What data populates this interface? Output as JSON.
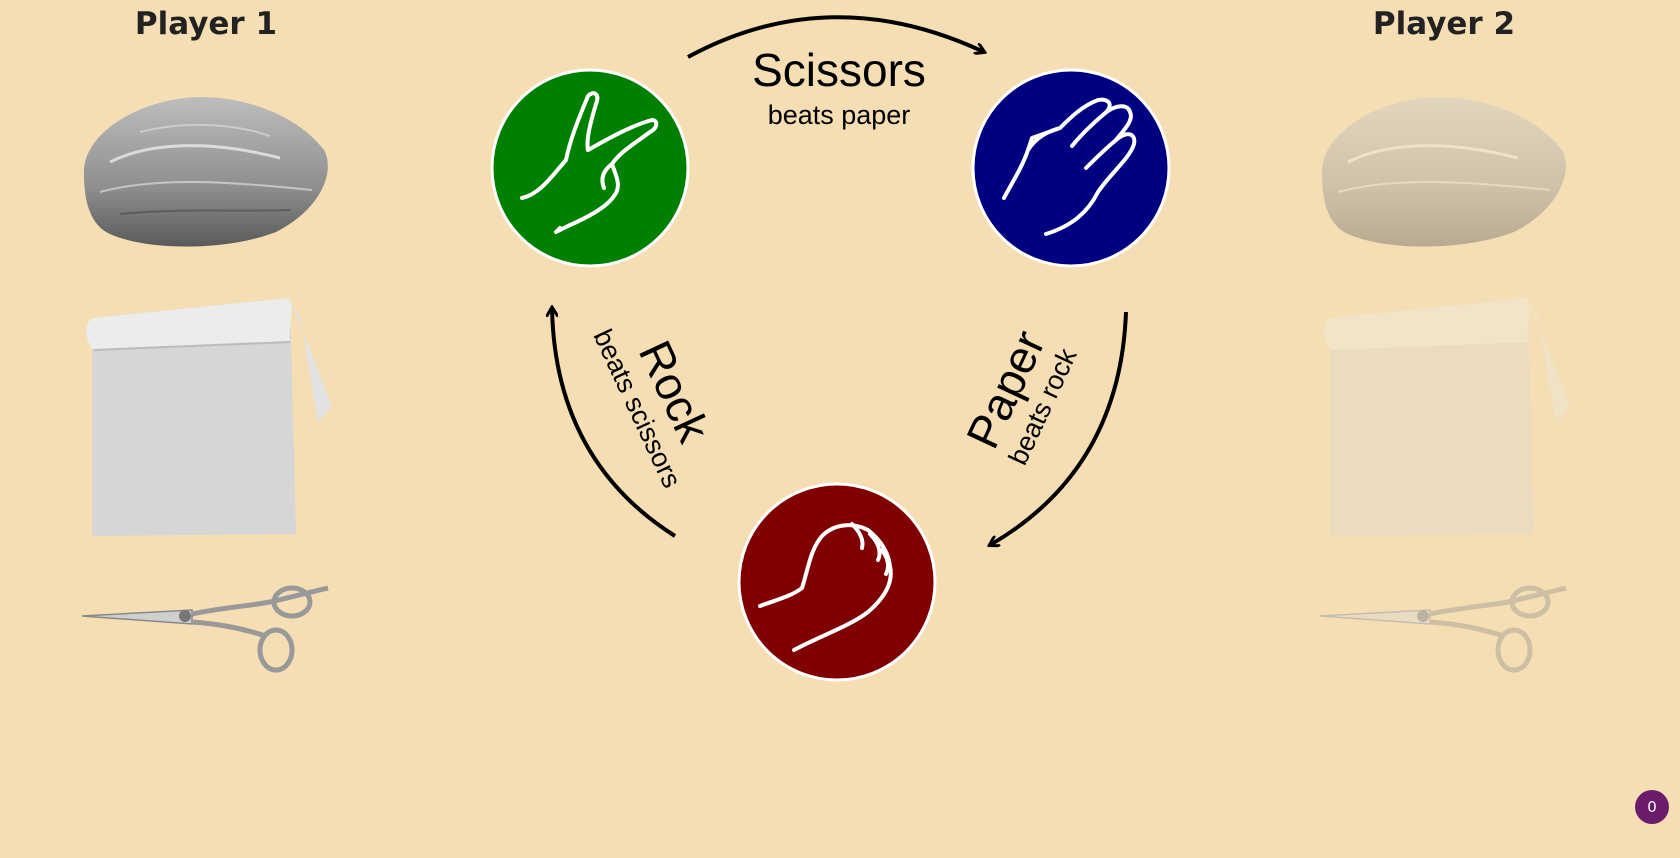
{
  "players": {
    "player1": {
      "title": "Player 1"
    },
    "player2": {
      "title": "Player 2"
    }
  },
  "choices": [
    "rock",
    "paper",
    "scissors"
  ],
  "cycle": {
    "scissors": {
      "title": "Scissors",
      "subtitle": "beats paper",
      "color": "#008000"
    },
    "paper": {
      "title": "Paper",
      "subtitle": "beats rock",
      "color": "#000080"
    },
    "rock": {
      "title": "Rock",
      "subtitle": "beats scissors",
      "color": "#800000"
    }
  },
  "score_badge": {
    "value": "0",
    "color": "#6a1b6a"
  }
}
